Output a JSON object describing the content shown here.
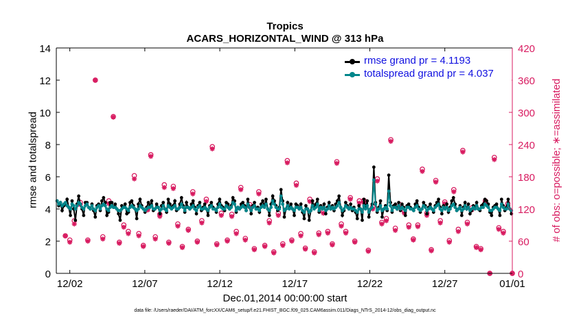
{
  "chart_data": {
    "type": "line",
    "title": "Tropics",
    "subtitle": "ACARS_HORIZONTAL_WIND @ 313 hPa",
    "xlabel": "Dec.01,2014 00:00:00 start",
    "ylabel_left": "rmse and totalspread",
    "ylabel_right": "# of obs: o=possible; ∗=assimilated",
    "footnote": "data file: /Users/raeder/DAI/ATM_forcXX/CAM6_setup/f.e21.FHIST_BGC.f09_025.CAM6assim.011/Diags_NTrS_2014-12/obs_diag_output.nc",
    "x_range": [
      0.6,
      31.0
    ],
    "ylim_left": [
      0,
      14
    ],
    "ylim_right": [
      0,
      420
    ],
    "xticks": [
      1.5,
      6.5,
      11.5,
      16.5,
      21.5,
      26.5,
      31.0
    ],
    "xtick_labels": [
      "12/02",
      "12/07",
      "12/12",
      "12/17",
      "12/22",
      "12/27",
      "01/01"
    ],
    "yticks_left": [
      0,
      2,
      4,
      6,
      8,
      10,
      12,
      14
    ],
    "yticks_right": [
      0,
      60,
      120,
      180,
      240,
      300,
      360,
      420
    ],
    "colors": {
      "rmse": "#000000",
      "spread": "#00868b",
      "obs": "#d81b60",
      "legend_text": "#1010e0"
    },
    "series": [
      {
        "name": "rmse",
        "legend": "rmse grand pr = 4.1193",
        "values": [
          4.5,
          4.2,
          4.4,
          3.9,
          4.2,
          4.3,
          4.6,
          4.1,
          3.6,
          4.5,
          4.0,
          3.3,
          4.3,
          4.8,
          4.3,
          4.0,
          3.6,
          4.4,
          4.4,
          4.1,
          4.0,
          4.3,
          3.9,
          3.5,
          4.2,
          4.3,
          3.9,
          4.5,
          4.7,
          4.4,
          3.6,
          3.8,
          4.4,
          4.4,
          4.1,
          4.3,
          4.0,
          3.7,
          3.3,
          4.2,
          4.1,
          4.3,
          3.7,
          3.8,
          4.4,
          4.5,
          4.2,
          4.0,
          3.4,
          4.3,
          4.6,
          4.2,
          4.0,
          3.8,
          4.1,
          4.4,
          4.2,
          4.5,
          3.9,
          4.0,
          4.3,
          4.1,
          3.7,
          4.2,
          4.4,
          4.0,
          3.8,
          4.6,
          4.3,
          4.1,
          4.2,
          4.5,
          3.9,
          4.0,
          4.3,
          4.7,
          4.2,
          3.8,
          4.4,
          4.1,
          4.0,
          4.3,
          4.5,
          4.1,
          3.7,
          4.2,
          4.4,
          3.9,
          4.1,
          4.3,
          4.0,
          3.6,
          4.2,
          4.4,
          4.1,
          4.0,
          3.8,
          4.3,
          4.6,
          4.2,
          4.1,
          3.9,
          4.4,
          4.3,
          4.0,
          4.2,
          4.7,
          4.5,
          3.8,
          4.1,
          4.0,
          4.3,
          4.4,
          4.2,
          3.9,
          4.6,
          4.1,
          3.7,
          4.2,
          4.4,
          4.0,
          4.1,
          3.8,
          4.3,
          4.5,
          4.2,
          4.6,
          4.0,
          3.6,
          4.3,
          4.8,
          4.5,
          4.2,
          3.9,
          4.1,
          5.2,
          4.5,
          3.5,
          4.0,
          4.4,
          4.1,
          4.3,
          4.0,
          3.6,
          4.3,
          4.2,
          4.0,
          4.3,
          3.8,
          3.4,
          4.2,
          4.0,
          3.3,
          3.9,
          4.5,
          4.1,
          4.3,
          4.6,
          3.8,
          4.2,
          4.0,
          4.3,
          3.7,
          4.1,
          4.4,
          4.0,
          4.2,
          3.9,
          4.3,
          4.5,
          4.8,
          4.1,
          3.6,
          3.9,
          4.4,
          4.2,
          4.0,
          4.3,
          3.9,
          4.1,
          3.8,
          3.4,
          4.2,
          4.0,
          3.3,
          4.6,
          4.1,
          4.5,
          3.5,
          4.0,
          4.3,
          6.6,
          4.4,
          3.8,
          4.1,
          4.5,
          3.5,
          4.0,
          4.2,
          3.9,
          6.1,
          4.4,
          3.8,
          4.2,
          4.3,
          4.0,
          4.4,
          3.9,
          4.3,
          4.1,
          3.6,
          4.2,
          4.3,
          4.1,
          4.0,
          3.9,
          4.3,
          4.5,
          4.1,
          3.8,
          4.0,
          4.4,
          4.2,
          3.7,
          4.1,
          4.3,
          4.0,
          3.8,
          4.2,
          4.4,
          4.6,
          4.1,
          3.7,
          4.2,
          4.0,
          4.3,
          3.8,
          4.1,
          4.5,
          4.7,
          4.3,
          3.9,
          4.0,
          4.2,
          3.6,
          4.1,
          4.4,
          4.0,
          4.3,
          3.7,
          3.9,
          4.2,
          4.1,
          4.4,
          4.0,
          3.9,
          4.2,
          4.3,
          4.6,
          4.5,
          4.3,
          3.8,
          3.6,
          4.1,
          4.2,
          4.3,
          4.0,
          3.6,
          4.6,
          4.2,
          3.9,
          4.1,
          4.6,
          4.0,
          3.7
        ]
      },
      {
        "name": "totalspread",
        "legend": "totalspread grand pr = 4.037",
        "values": [
          4.5,
          4.3,
          4.4,
          4.2,
          4.3,
          4.4,
          4.2,
          4.1,
          4.0,
          4.3,
          4.2,
          4.0,
          4.2,
          4.4,
          4.3,
          4.1,
          4.0,
          4.2,
          4.3,
          4.1,
          4.0,
          4.2,
          4.0,
          3.9,
          4.1,
          4.2,
          4.0,
          4.2,
          4.3,
          4.2,
          4.0,
          3.9,
          4.1,
          4.2,
          4.1,
          4.1,
          4.0,
          3.9,
          3.9,
          4.0,
          4.1,
          4.1,
          4.0,
          3.9,
          4.1,
          4.2,
          4.1,
          4.0,
          3.9,
          4.0,
          4.2,
          4.1,
          4.0,
          3.9,
          4.0,
          4.1,
          4.1,
          4.2,
          4.0,
          4.0,
          4.1,
          4.1,
          3.9,
          4.0,
          4.2,
          4.0,
          3.9,
          4.2,
          4.1,
          4.0,
          4.1,
          4.2,
          4.0,
          4.0,
          4.1,
          4.3,
          4.1,
          3.9,
          4.1,
          4.1,
          4.0,
          4.1,
          4.2,
          4.0,
          3.9,
          4.1,
          4.2,
          4.0,
          4.0,
          4.1,
          4.0,
          3.9,
          4.1,
          4.2,
          4.0,
          4.0,
          3.9,
          4.1,
          4.3,
          4.1,
          4.0,
          4.0,
          4.2,
          4.1,
          4.0,
          4.1,
          4.4,
          4.3,
          3.9,
          4.1,
          4.0,
          4.1,
          4.2,
          4.1,
          3.9,
          4.3,
          4.1,
          3.9,
          4.1,
          4.2,
          4.0,
          4.0,
          3.9,
          4.1,
          4.2,
          4.1,
          4.3,
          4.0,
          3.9,
          4.1,
          4.5,
          4.3,
          4.1,
          4.0,
          4.0,
          4.8,
          4.3,
          3.9,
          4.0,
          4.2,
          4.0,
          4.1,
          4.0,
          3.9,
          4.1,
          4.1,
          4.0,
          4.1,
          3.9,
          3.8,
          4.0,
          4.0,
          3.8,
          3.9,
          4.2,
          4.0,
          4.1,
          4.3,
          3.9,
          4.1,
          4.0,
          4.1,
          3.9,
          4.0,
          4.2,
          4.0,
          4.1,
          4.0,
          4.1,
          4.2,
          4.4,
          4.1,
          3.9,
          4.0,
          4.2,
          4.1,
          4.0,
          4.1,
          4.0,
          4.0,
          3.9,
          3.8,
          4.0,
          4.0,
          3.8,
          4.2,
          4.0,
          4.2,
          3.8,
          4.0,
          4.1,
          5.8,
          4.3,
          3.9,
          4.0,
          4.2,
          3.9,
          4.0,
          4.1,
          4.0,
          5.1,
          4.2,
          3.9,
          4.1,
          4.1,
          4.0,
          4.2,
          4.0,
          4.1,
          4.0,
          3.9,
          4.1,
          4.1,
          4.0,
          4.0,
          3.9,
          4.1,
          4.2,
          4.0,
          3.9,
          4.0,
          4.2,
          4.1,
          3.9,
          4.0,
          4.1,
          4.0,
          3.9,
          4.1,
          4.2,
          4.3,
          4.0,
          3.9,
          4.1,
          4.0,
          4.1,
          3.9,
          4.0,
          4.2,
          4.3,
          4.1,
          3.9,
          4.0,
          4.1,
          3.9,
          4.0,
          4.2,
          4.0,
          4.1,
          3.9,
          4.0,
          4.1,
          4.0,
          4.2,
          4.0,
          4.0,
          4.1,
          4.1,
          4.3,
          4.2,
          4.1,
          3.9,
          3.9,
          4.0,
          4.1,
          4.1,
          4.0,
          3.9,
          4.3,
          4.1,
          4.0,
          4.0,
          4.3,
          4.0,
          3.9
        ]
      }
    ],
    "obs_counts": {
      "x": [
        1.2,
        1.5,
        1.8,
        2.2,
        2.7,
        3.2,
        3.7,
        4.1,
        4.4,
        4.8,
        5.1,
        5.4,
        5.8,
        6.1,
        6.4,
        6.7,
        6.9,
        7.2,
        7.5,
        7.8,
        8.1,
        8.4,
        8.7,
        9.0,
        9.4,
        9.7,
        10.0,
        10.3,
        10.6,
        11.0,
        11.3,
        11.6,
        12.0,
        12.3,
        12.6,
        12.9,
        13.2,
        13.5,
        13.8,
        14.1,
        14.5,
        14.8,
        15.1,
        15.4,
        15.7,
        16.0,
        16.3,
        16.6,
        16.9,
        17.2,
        17.5,
        17.8,
        18.1,
        18.4,
        18.7,
        19.0,
        19.3,
        19.6,
        19.9,
        20.2,
        20.5,
        20.8,
        21.1,
        21.4,
        21.7,
        22.0,
        22.3,
        22.6,
        22.9,
        23.2,
        23.5,
        23.8,
        24.1,
        24.4,
        24.7,
        25.0,
        25.3,
        25.6,
        25.9,
        26.2,
        26.5,
        26.8,
        27.1,
        27.4,
        27.7,
        28.0,
        28.3,
        28.6,
        28.9,
        29.2,
        29.5,
        29.8,
        30.1,
        30.4,
        30.7,
        31.0
      ],
      "possible": [
        70,
        62,
        98,
        132,
        62,
        360,
        68,
        135,
        292,
        58,
        90,
        78,
        182,
        74,
        52,
        122,
        221,
        68,
        110,
        165,
        58,
        162,
        92,
        50,
        82,
        152,
        60,
        98,
        138,
        236,
        55,
        112,
        62,
        110,
        78,
        160,
        65,
        128,
        46,
        152,
        52,
        98,
        40,
        112,
        55,
        210,
        62,
        168,
        74,
        47,
        138,
        40,
        75,
        116,
        78,
        55,
        208,
        92,
        78,
        141,
        60,
        135,
        136,
        43,
        124,
        176,
        95,
        102,
        249,
        84,
        128,
        116,
        90,
        64,
        90,
        194,
        112,
        44,
        173,
        98,
        133,
        61,
        156,
        82,
        229,
        95,
        122,
        50,
        46,
        135,
        0,
        216,
        85,
        78,
        130,
        0
      ],
      "assimilated": [
        70,
        58,
        92,
        128,
        60,
        360,
        64,
        130,
        291,
        56,
        86,
        74,
        176,
        70,
        50,
        118,
        218,
        64,
        106,
        160,
        56,
        158,
        88,
        48,
        80,
        148,
        58,
        94,
        134,
        232,
        53,
        108,
        60,
        106,
        74,
        156,
        62,
        124,
        44,
        148,
        50,
        94,
        38,
        108,
        52,
        206,
        60,
        164,
        70,
        45,
        134,
        38,
        72,
        112,
        75,
        53,
        205,
        88,
        75,
        138,
        58,
        131,
        132,
        41,
        120,
        172,
        92,
        98,
        246,
        80,
        124,
        112,
        86,
        62,
        87,
        190,
        108,
        42,
        170,
        94,
        130,
        58,
        152,
        78,
        226,
        92,
        118,
        48,
        44,
        132,
        0,
        212,
        82,
        75,
        126,
        0
      ]
    }
  }
}
